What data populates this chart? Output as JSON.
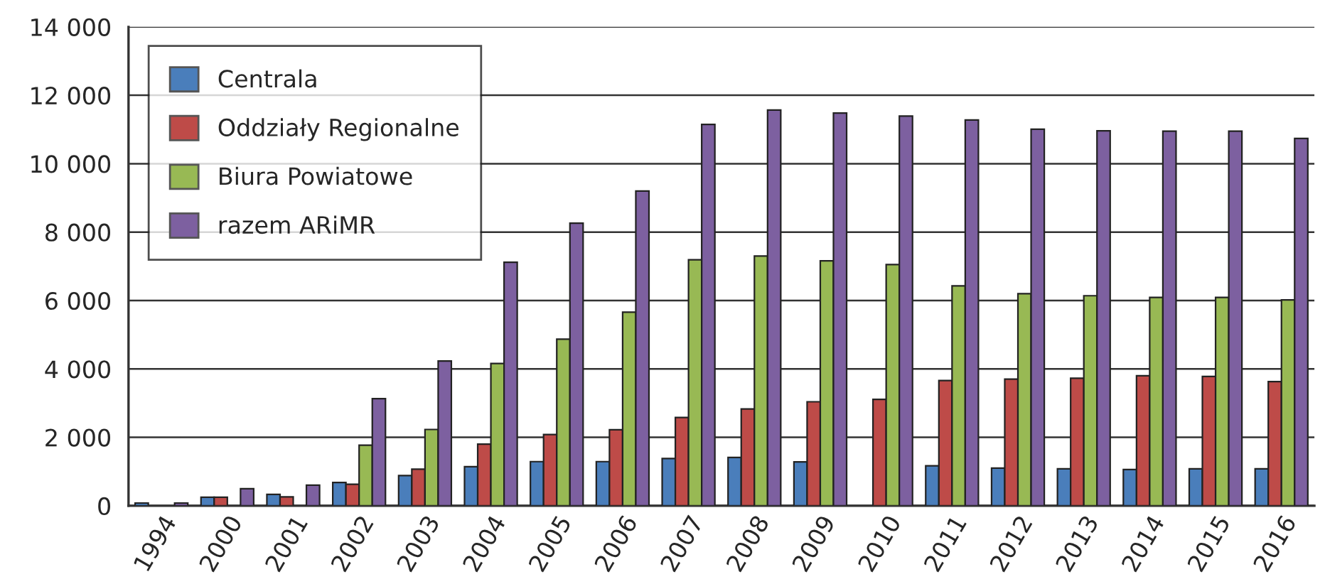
{
  "chart_data": {
    "type": "bar",
    "categories": [
      "1994",
      "2000",
      "2001",
      "2002",
      "2003",
      "2004",
      "2005",
      "2006",
      "2007",
      "2008",
      "2009",
      "2010",
      "2011",
      "2012",
      "2013",
      "2014",
      "2015",
      "2016"
    ],
    "series": [
      {
        "name": "Centrala",
        "color": "#4a7ebb",
        "values": [
          80,
          250,
          330,
          680,
          880,
          1140,
          1290,
          1290,
          1380,
          1410,
          1280,
          null,
          1170,
          1100,
          1080,
          1060,
          1080,
          1080
        ]
      },
      {
        "name": "Oddziały Regionalne",
        "color": "#be4b48",
        "values": [
          null,
          250,
          260,
          630,
          1070,
          1800,
          2080,
          2220,
          2580,
          2830,
          3040,
          3110,
          3660,
          3700,
          3730,
          3800,
          3780,
          3630
        ]
      },
      {
        "name": "Biura Powiatowe",
        "color": "#98b954",
        "values": [
          null,
          null,
          null,
          1770,
          2230,
          4160,
          4870,
          5660,
          7190,
          7300,
          7160,
          7050,
          6430,
          6200,
          6140,
          6090,
          6090,
          6020
        ]
      },
      {
        "name": "razem ARiMR",
        "color": "#7d60a0",
        "values": [
          80,
          500,
          600,
          3130,
          4230,
          7120,
          8260,
          9200,
          11150,
          11570,
          11480,
          11390,
          11280,
          11010,
          10960,
          10950,
          10950,
          10740
        ]
      }
    ],
    "ylim": [
      0,
      14000
    ],
    "yticks": [
      0,
      {
        "value": 2000,
        "label": "2 000"
      },
      {
        "value": 4000,
        "label": "4 000"
      },
      {
        "value": 6000,
        "label": "6 000"
      },
      {
        "value": 8000,
        "label": "8 000"
      },
      {
        "value": 10000,
        "label": "10 000"
      },
      {
        "value": 12000,
        "label": "12 000"
      },
      {
        "value": 14000,
        "label": "14 000"
      }
    ],
    "grid": "y",
    "legend": "top left"
  }
}
